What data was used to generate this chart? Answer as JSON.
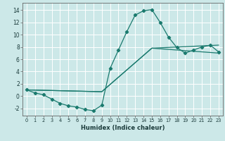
{
  "title": "",
  "xlabel": "Humidex (Indice chaleur)",
  "bg_color": "#cce8e8",
  "grid_color": "#ffffff",
  "line_color": "#1a7a6e",
  "xlim": [
    -0.5,
    23.5
  ],
  "ylim": [
    -3.2,
    15.2
  ],
  "xticks": [
    0,
    1,
    2,
    3,
    4,
    5,
    6,
    7,
    8,
    9,
    10,
    11,
    12,
    13,
    14,
    15,
    16,
    17,
    18,
    19,
    20,
    21,
    22,
    23
  ],
  "yticks": [
    -2,
    0,
    2,
    4,
    6,
    8,
    10,
    12,
    14
  ],
  "curve1_x": [
    0,
    1,
    2,
    3,
    4,
    5,
    6,
    7,
    8,
    9,
    10,
    11,
    12,
    13,
    14,
    15,
    16,
    17,
    18,
    19,
    20,
    21,
    22,
    23
  ],
  "curve1_y": [
    1.0,
    0.5,
    0.2,
    -0.5,
    -1.2,
    -1.6,
    -1.8,
    -2.2,
    -2.4,
    -1.5,
    4.5,
    7.5,
    10.5,
    13.2,
    13.9,
    14.1,
    12.0,
    9.6,
    7.9,
    7.0,
    7.5,
    8.0,
    8.3,
    7.2
  ],
  "curve2_x": [
    0,
    9,
    15,
    23
  ],
  "curve2_y": [
    1.0,
    0.7,
    7.8,
    8.3
  ],
  "curve3_x": [
    0,
    9,
    15,
    23
  ],
  "curve3_y": [
    1.0,
    0.7,
    7.8,
    7.0
  ],
  "marker_style": "D",
  "marker_size": 2.2,
  "linewidth": 0.9,
  "xlabel_fontsize": 6.0,
  "tick_fontsize_x": 4.8,
  "tick_fontsize_y": 5.5
}
